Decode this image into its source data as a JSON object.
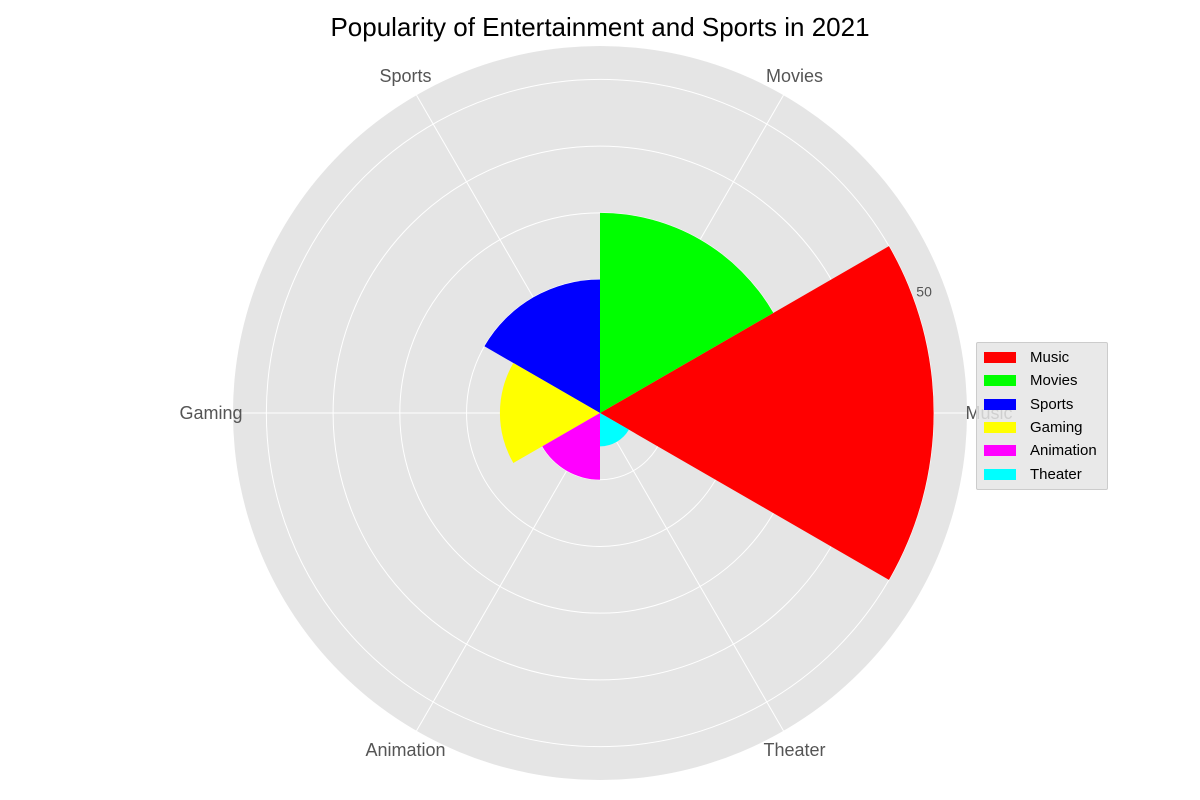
{
  "chart_data": {
    "type": "polar-bar",
    "title": "Popularity of Entertainment and Sports in 2021",
    "categories": [
      "Music",
      "Movies",
      "Sports",
      "Gaming",
      "Animation",
      "Theater"
    ],
    "values": [
      50,
      30,
      20,
      15,
      10,
      5
    ],
    "colors": [
      "#ff0000",
      "#00ff00",
      "#0000ff",
      "#ffff00",
      "#ff00ff",
      "#00ffff"
    ],
    "rlim": [
      0,
      55
    ],
    "r_ticks": [
      10,
      20,
      30,
      40,
      50
    ],
    "r_tick_labels": [
      "",
      "",
      "",
      "",
      "50"
    ],
    "grid": true,
    "legend": {
      "position": "right",
      "entries": [
        "Music",
        "Movies",
        "Sports",
        "Gaming",
        "Animation",
        "Theater"
      ]
    }
  }
}
